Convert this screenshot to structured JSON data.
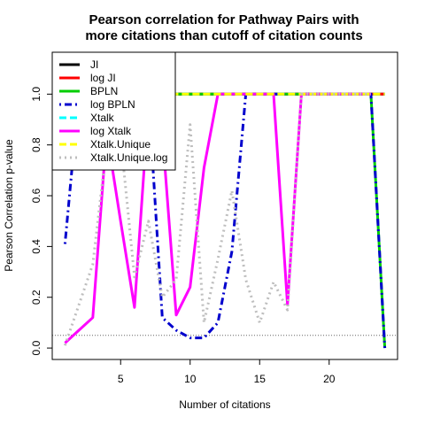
{
  "chart_data": {
    "type": "line",
    "title_lines": [
      "Pearson correlation for Pathway Pairs with",
      "more citations than cutoff of citation counts"
    ],
    "xlabel": "Number of citations",
    "ylabel": "Pearson Correlation p-value",
    "xlim": [
      0.08,
      24.92
    ],
    "ylim": [
      -0.045,
      1.165
    ],
    "x_ticks": [
      5,
      10,
      15,
      20
    ],
    "y_ticks": [
      0.0,
      0.2,
      0.4,
      0.6,
      0.8,
      1.0
    ],
    "y_tick_labels": [
      "0.0",
      "0.2",
      "0.4",
      "0.6",
      "0.8",
      "1.0"
    ],
    "reference_line": {
      "y": 0.05,
      "style": "dotted",
      "color": "#666666"
    },
    "legend_position": "top-left",
    "series": [
      {
        "name": "JI",
        "color": "#000000",
        "dash": "solid",
        "x": [
          1,
          24
        ],
        "y": [
          1.0,
          1.0
        ]
      },
      {
        "name": "log JI",
        "color": "#ff0000",
        "dash": "solid",
        "x": [
          1,
          24
        ],
        "y": [
          1.0,
          1.0
        ]
      },
      {
        "name": "BPLN",
        "color": "#00cd00",
        "dash": "solid",
        "x": [
          1,
          23,
          24
        ],
        "y": [
          1.0,
          1.0,
          0.0
        ]
      },
      {
        "name": "log BPLN",
        "color": "#0000cd",
        "dash": "dashdot",
        "x": [
          1,
          2,
          3,
          4,
          5,
          6,
          7,
          8,
          9,
          10,
          11,
          12,
          13,
          14,
          15,
          16,
          17,
          18,
          19,
          20,
          21,
          22,
          23,
          24
        ],
        "y": [
          0.41,
          1.0,
          1.0,
          1.0,
          1.0,
          1.0,
          1.0,
          0.12,
          0.07,
          0.04,
          0.04,
          0.1,
          0.38,
          1.0,
          1.0,
          1.0,
          1.0,
          1.0,
          1.0,
          1.0,
          1.0,
          1.0,
          1.0,
          0.0
        ]
      },
      {
        "name": "Xtalk",
        "color": "#00ffff",
        "dash": "dashed",
        "x": [
          1,
          24
        ],
        "y": [
          1.0,
          1.0
        ]
      },
      {
        "name": "log Xtalk",
        "color": "#ff00ff",
        "dash": "solid",
        "x": [
          1,
          2,
          3,
          4,
          5,
          6,
          7,
          8,
          9,
          10,
          11,
          12,
          13,
          14,
          15,
          16,
          17,
          18,
          19,
          20,
          21,
          22,
          23
        ],
        "y": [
          0.02,
          0.07,
          0.12,
          0.85,
          0.5,
          0.16,
          0.95,
          0.85,
          0.13,
          0.24,
          0.71,
          1.0,
          1.0,
          1.0,
          1.0,
          1.0,
          0.17,
          1.0,
          1.0,
          1.0,
          1.0,
          1.0,
          1.0
        ]
      },
      {
        "name": "Xtalk.Unique",
        "color": "#ffff00",
        "dash": "dashed",
        "x": [
          1,
          24
        ],
        "y": [
          1.0,
          1.0
        ]
      },
      {
        "name": "Xtalk.Unique.log",
        "color": "#bebebe",
        "dash": "dotted",
        "x": [
          1,
          2,
          3,
          4,
          5,
          6,
          7,
          8,
          9,
          10,
          11,
          12,
          13,
          14,
          15,
          16,
          17,
          18,
          19,
          20,
          21,
          22,
          23
        ],
        "y": [
          0.01,
          0.17,
          0.33,
          0.8,
          0.83,
          0.28,
          0.5,
          0.2,
          0.27,
          0.88,
          0.1,
          0.35,
          0.62,
          0.27,
          0.1,
          0.26,
          0.15,
          1.0,
          1.0,
          1.0,
          1.0,
          1.0,
          1.0
        ]
      }
    ]
  }
}
